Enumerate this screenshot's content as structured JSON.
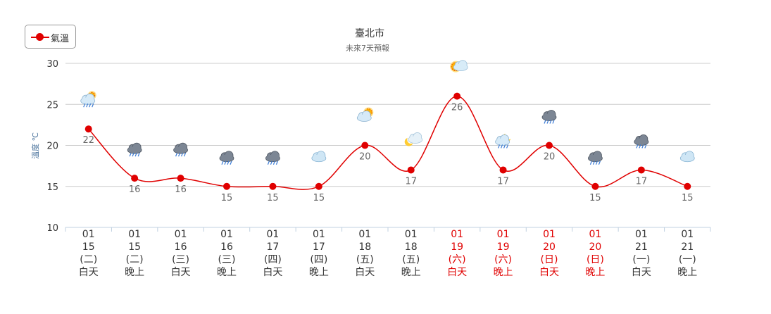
{
  "chart_data": {
    "type": "line",
    "title": "臺北市",
    "subtitle": "未來7天預報",
    "ylabel": "溫度 ℃",
    "ylim": [
      10,
      30
    ],
    "yticks": [
      10,
      15,
      20,
      25,
      30
    ],
    "legend": "top-left",
    "grid": true,
    "colors": {
      "line": "#e00000",
      "weekday_text": "#333333",
      "weekend_text": "#e00000",
      "grid": "#cccccc"
    },
    "categories": [
      {
        "month": "01",
        "day": "15",
        "weekday": "(二)",
        "period": "白天",
        "weekend": false
      },
      {
        "month": "01",
        "day": "15",
        "weekday": "(二)",
        "period": "晚上",
        "weekend": false
      },
      {
        "month": "01",
        "day": "16",
        "weekday": "(三)",
        "period": "白天",
        "weekend": false
      },
      {
        "month": "01",
        "day": "16",
        "weekday": "(三)",
        "period": "晚上",
        "weekend": false
      },
      {
        "month": "01",
        "day": "17",
        "weekday": "(四)",
        "period": "白天",
        "weekend": false
      },
      {
        "month": "01",
        "day": "17",
        "weekday": "(四)",
        "period": "晚上",
        "weekend": false
      },
      {
        "month": "01",
        "day": "18",
        "weekday": "(五)",
        "period": "白天",
        "weekend": false
      },
      {
        "month": "01",
        "day": "18",
        "weekday": "(五)",
        "period": "晚上",
        "weekend": false
      },
      {
        "month": "01",
        "day": "19",
        "weekday": "(六)",
        "period": "白天",
        "weekend": true
      },
      {
        "month": "01",
        "day": "19",
        "weekday": "(六)",
        "period": "晚上",
        "weekend": true
      },
      {
        "month": "01",
        "day": "20",
        "weekday": "(日)",
        "period": "白天",
        "weekend": true
      },
      {
        "month": "01",
        "day": "20",
        "weekday": "(日)",
        "period": "晚上",
        "weekend": true
      },
      {
        "month": "01",
        "day": "21",
        "weekday": "(一)",
        "period": "白天",
        "weekend": false
      },
      {
        "month": "01",
        "day": "21",
        "weekday": "(一)",
        "period": "晚上",
        "weekend": false
      }
    ],
    "series": [
      {
        "name": "氣溫",
        "values": [
          22,
          16,
          16,
          15,
          15,
          15,
          20,
          17,
          26,
          17,
          20,
          15,
          17,
          15
        ]
      }
    ],
    "weather_icons": [
      "partly-cloudy-rain-icon",
      "rain-cloud-icon",
      "rain-cloud-icon",
      "rain-cloud-icon",
      "rain-cloud-icon",
      "cloudy-icon",
      "partly-cloudy-day-icon",
      "clear-night-icon",
      "sunny-icon",
      "partly-cloudy-night-rain-icon",
      "rain-cloud-icon",
      "rain-cloud-icon",
      "rain-cloud-icon",
      "cloudy-icon"
    ]
  }
}
